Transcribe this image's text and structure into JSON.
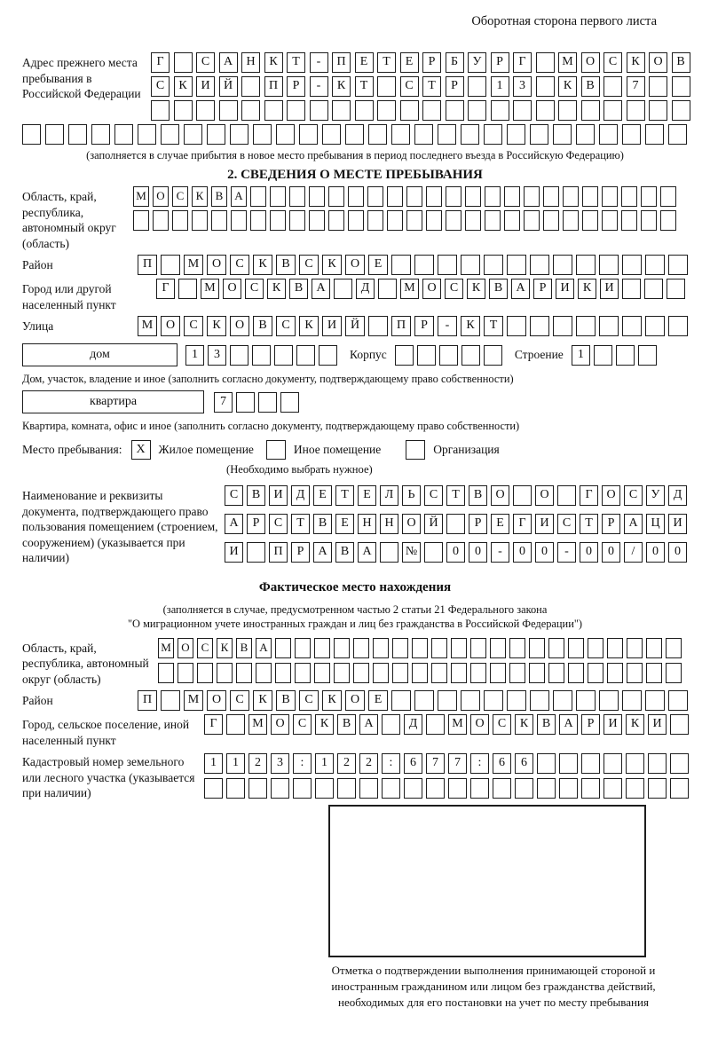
{
  "page_title": "Оборотная сторона первого листа",
  "prev_address": {
    "label": "Адрес прежнего места пребывания в Российской Федерации",
    "row1": {
      "text": "Г САНКТ-ПЕТЕРБУРГ МОСКОВ",
      "len": 24
    },
    "row2": {
      "text": "СКИЙ ПР-КТ СТР 13 КВ 7",
      "len": 24
    },
    "row3": {
      "text": "",
      "len": 24
    },
    "row4": {
      "text": "",
      "len": 29
    },
    "note": "(заполняется в случае прибытия в новое место пребывания в период последнего въезда в Российскую Федерацию)"
  },
  "section2": {
    "title": "2. СВЕДЕНИЯ О МЕСТЕ ПРЕБЫВАНИЯ",
    "region": {
      "label": "Область, край, республика, автономный округ (область)",
      "row1": {
        "text": "МОСКВА",
        "len": 28
      },
      "row2": {
        "text": "",
        "len": 28
      }
    },
    "district": {
      "label": "Район",
      "row": {
        "text": "П МОСКВСКОЕ",
        "len": 24
      }
    },
    "city": {
      "label": "Город или другой населенный пункт",
      "row": {
        "text": "Г МОСКВА Д МОСКВАРИКИ",
        "len": 24
      }
    },
    "street": {
      "label": "Улица",
      "row": {
        "text": "МОСКОВСКИЙ ПР-КТ",
        "len": 24
      }
    },
    "house": {
      "box_label": "дом",
      "number": {
        "text": "13",
        "len": 7
      },
      "korpus_label": "Корпус",
      "korpus": {
        "text": "",
        "len": 5
      },
      "stroenie_label": "Строение",
      "stroenie": {
        "text": "1",
        "len": 4
      }
    },
    "house_note": "Дом, участок, владение и иное (заполнить согласно документу, подтверждающему право собственности)",
    "apartment": {
      "box_label": "квартира",
      "number": {
        "text": "7",
        "len": 4
      }
    },
    "apartment_note": "Квартира, комната, офис и иное (заполнить согласно документу, подтверждающему право собственности)",
    "stay_type": {
      "label": "Место пребывания:",
      "opt1": {
        "label": "Жилое помещение",
        "mark": "X"
      },
      "opt2": {
        "label": "Иное помещение",
        "mark": ""
      },
      "opt3": {
        "label": "Организация",
        "mark": ""
      },
      "hint": "(Необходимо выбрать нужное)"
    },
    "doc": {
      "label": "Наименование и реквизиты документа, подтверждающего право пользования помещением (строением, сооружением) (указывается при наличии)",
      "row1": {
        "text": "СВИДЕТЕЛЬСТВО О ГОСУД",
        "len": 21
      },
      "row2": {
        "text": "АРСТВЕННОЙ РЕГИСТРАЦИ",
        "len": 21
      },
      "row3": {
        "text": "И ПРАВА № 00-00-00/000",
        "len": 21
      }
    }
  },
  "actual_location": {
    "title": "Фактическое место нахождения",
    "note1": "(заполняется в случае, предусмотренном частью 2 статьи 21 Федерального закона",
    "note2": "\"О миграционном учете иностранных граждан и лиц без гражданства в Российской Федерации\")",
    "region": {
      "label": "Область, край, республика, автономный округ (область)",
      "row1": {
        "text": "МОСКВА",
        "len": 27
      },
      "row2": {
        "text": "",
        "len": 27
      }
    },
    "district": {
      "label": "Район",
      "row": {
        "text": "П МОСКВСКОЕ",
        "len": 24
      }
    },
    "city": {
      "label": "Город, сельское поселение, иной населенный пункт",
      "row": {
        "text": "Г МОСКВА Д МОСКВАРИКИ",
        "len": 22
      }
    },
    "cadastre": {
      "label": "Кадастровый номер земельного или лесного участка (указывается при наличии)",
      "row1": {
        "text": "1123:122:677:66",
        "len": 22
      },
      "row2": {
        "text": "",
        "len": 22
      }
    }
  },
  "stamp": {
    "caption": "Отметка о подтверждении выполнения принимающей стороной и иностранным гражданином или лицом без гражданства действий, необходимых для его постановки на учет по месту пребывания"
  }
}
